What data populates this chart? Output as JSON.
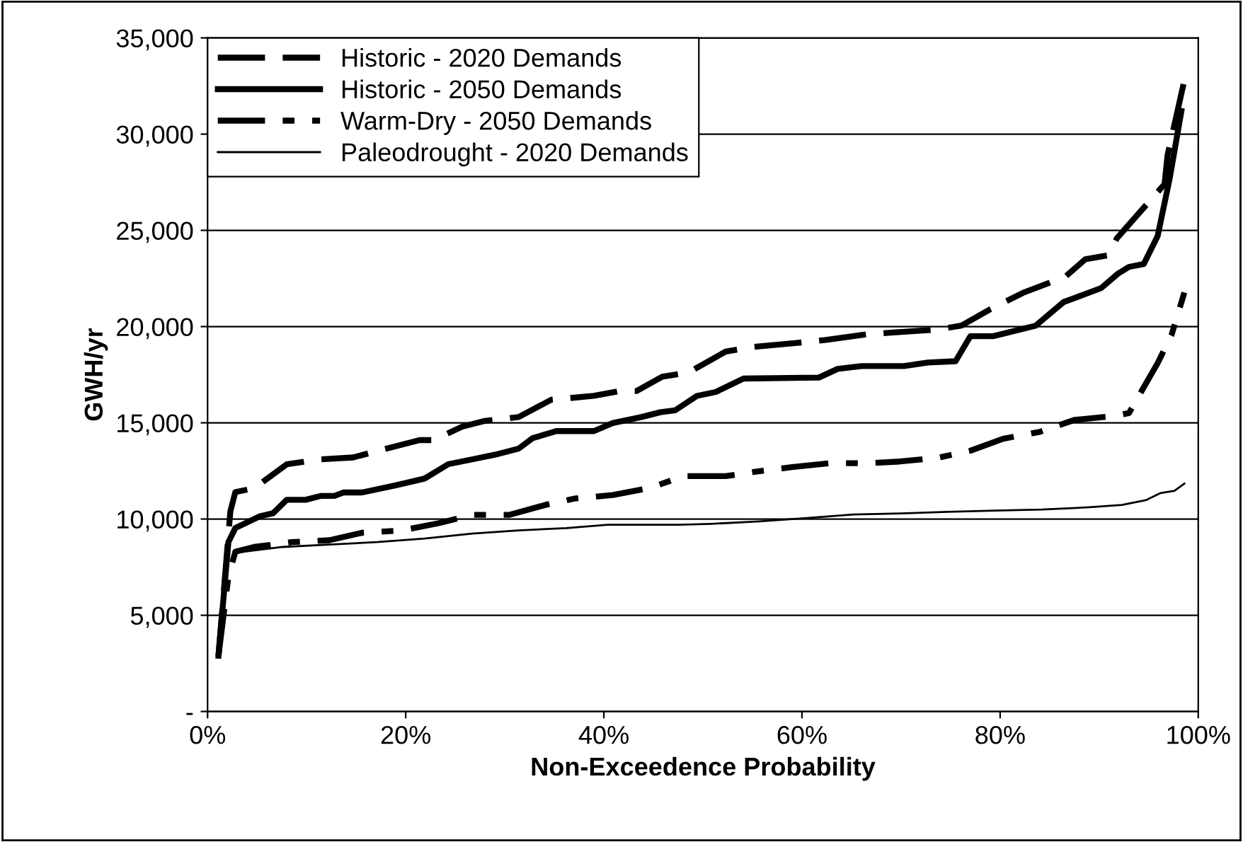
{
  "chart_data": {
    "type": "line",
    "xlabel": "Non-Exceedence Probability",
    "ylabel": "GWH/yr",
    "xlim": [
      0,
      100
    ],
    "xticks": [
      {
        "value": 0,
        "label": "0%"
      },
      {
        "value": 20,
        "label": "20%"
      },
      {
        "value": 40,
        "label": "40%"
      },
      {
        "value": 60,
        "label": "60%"
      },
      {
        "value": 80,
        "label": "80%"
      },
      {
        "value": 100,
        "label": "100%"
      }
    ],
    "ylim": [
      0,
      35000
    ],
    "yticks": [
      {
        "value": 0,
        "label": "-"
      },
      {
        "value": 5000,
        "label": "5,000"
      },
      {
        "value": 10000,
        "label": "10,000"
      },
      {
        "value": 15000,
        "label": "15,000"
      },
      {
        "value": 20000,
        "label": "20,000"
      },
      {
        "value": 25000,
        "label": "25,000"
      },
      {
        "value": 30000,
        "label": "30,000"
      },
      {
        "value": 35000,
        "label": "35,000"
      }
    ],
    "grid": "y",
    "legend": "top left",
    "marker": "none",
    "series": [
      {
        "name": "Historic - 2020 Demands",
        "color": "#000000",
        "line_style": "dashed",
        "x": [
          1.1,
          2.3,
          2.8,
          4.7,
          8,
          11.4,
          14.7,
          17.6,
          21.4,
          22.8,
          25.7,
          28,
          31.4,
          34.7,
          39,
          41.6,
          43.3,
          45.9,
          48.5,
          52.3,
          55.2,
          59.5,
          62.3,
          66.6,
          69.5,
          73.7,
          76.1,
          79,
          82.3,
          86.6,
          88.6,
          90.9,
          91.8,
          96.6,
          96.9,
          98.6
        ],
        "values": [
          2900,
          10400,
          11400,
          11600,
          12850,
          13100,
          13200,
          13600,
          14100,
          14100,
          14800,
          15100,
          15300,
          16200,
          16400,
          16650,
          16650,
          17400,
          17600,
          18700,
          18950,
          19150,
          19300,
          19600,
          19700,
          19850,
          20050,
          20900,
          21750,
          22600,
          23500,
          23700,
          24600,
          27400,
          28900,
          32800
        ]
      },
      {
        "name": "Historic - 2050 Demands",
        "color": "#000000",
        "line_style": "solid",
        "x": [
          1.1,
          2.1,
          2.8,
          5.3,
          6.6,
          8,
          9.9,
          11.4,
          12.8,
          13.7,
          15.6,
          19,
          21.9,
          24.3,
          26.7,
          29,
          31.4,
          32.8,
          35.2,
          39,
          40.9,
          43.8,
          45.7,
          47.2,
          49.4,
          51.3,
          54.1,
          61.7,
          63.6,
          66,
          70.3,
          72.7,
          75.5,
          77,
          79.3,
          83.6,
          86.4,
          90.2,
          91.9,
          93,
          94.5,
          95.9,
          97.1,
          98.3
        ],
        "values": [
          2900,
          8800,
          9530,
          10150,
          10300,
          11000,
          11000,
          11200,
          11200,
          11380,
          11380,
          11750,
          12100,
          12850,
          13100,
          13340,
          13660,
          14200,
          14570,
          14570,
          14990,
          15300,
          15550,
          15650,
          16400,
          16600,
          17300,
          17350,
          17800,
          17950,
          17950,
          18130,
          18200,
          19500,
          19500,
          20050,
          21270,
          22000,
          22750,
          23100,
          23250,
          24700,
          27650,
          31200
        ]
      },
      {
        "name": "Warm-Dry - 2050 Demands",
        "color": "#000000",
        "line_style": "dashdot",
        "x": [
          1.1,
          2.1,
          2.8,
          4.7,
          8.5,
          12.3,
          15.6,
          19.5,
          23.3,
          26.7,
          30.5,
          34.3,
          37,
          40.9,
          44.7,
          48,
          52.3,
          55.2,
          59,
          62.8,
          66.6,
          69.9,
          73.7,
          77,
          80.3,
          84,
          87.5,
          91.3,
          93,
          95.9,
          97.3,
          98.6
        ],
        "values": [
          2900,
          7000,
          8300,
          8550,
          8800,
          8900,
          9290,
          9400,
          9780,
          10220,
          10220,
          10760,
          11060,
          11250,
          11620,
          12230,
          12230,
          12450,
          12700,
          12900,
          12900,
          12990,
          13180,
          13550,
          14170,
          14530,
          15150,
          15340,
          15500,
          18100,
          19560,
          21770
        ]
      },
      {
        "name": "Paleodrought - 2020 Demands",
        "color": "#000000",
        "line_style": "solid",
        "x": [
          2.8,
          7.6,
          12.3,
          17.1,
          21.9,
          26.7,
          31.4,
          36.2,
          40.4,
          47.6,
          50.8,
          55.7,
          60.5,
          65.2,
          70,
          74.7,
          79.5,
          84.2,
          89,
          92.3,
          94.7,
          96.2,
          97.6,
          98.6
        ],
        "values": [
          8250,
          8550,
          8670,
          8800,
          8990,
          9240,
          9410,
          9530,
          9700,
          9700,
          9750,
          9880,
          10050,
          10240,
          10290,
          10370,
          10440,
          10490,
          10610,
          10730,
          10980,
          11350,
          11470,
          11840
        ]
      }
    ]
  }
}
